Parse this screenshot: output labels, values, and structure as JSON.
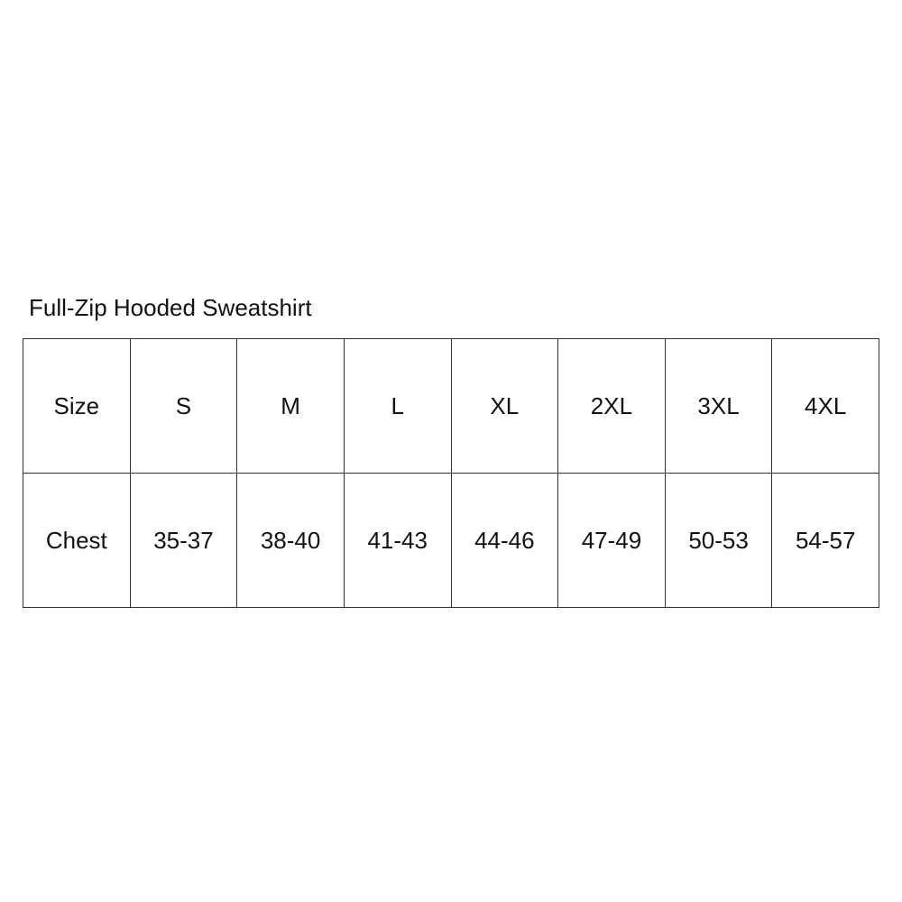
{
  "title": "Full-Zip Hooded Sweatshirt",
  "table": {
    "rows": [
      {
        "label": "Size",
        "cells": [
          "S",
          "M",
          "L",
          "XL",
          "2XL",
          "3XL",
          "4XL"
        ]
      },
      {
        "label": "Chest",
        "cells": [
          "35-37",
          "38-40",
          "41-43",
          "44-46",
          "47-49",
          "50-53",
          "54-57"
        ]
      }
    ]
  }
}
